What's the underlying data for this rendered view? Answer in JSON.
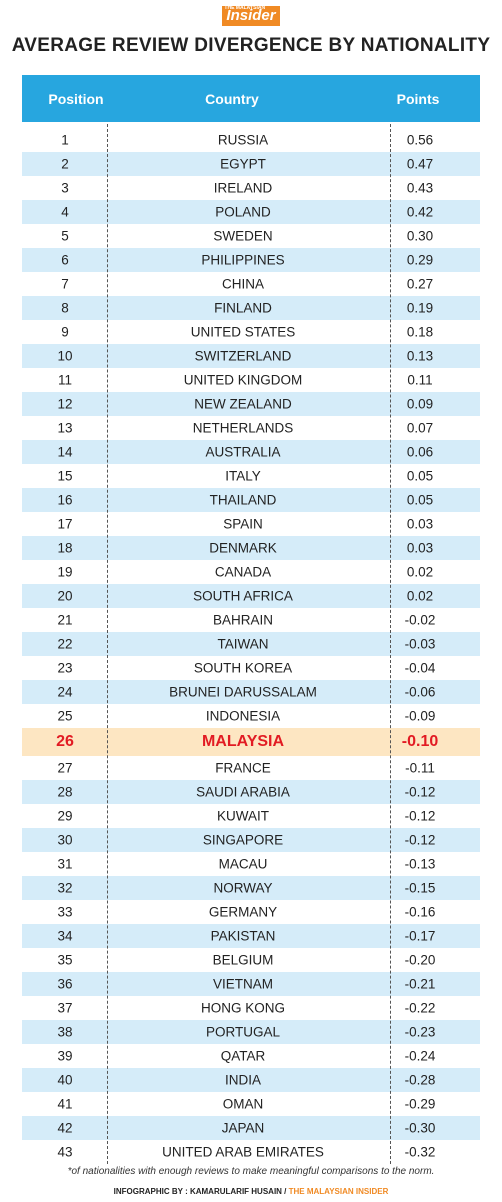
{
  "header": {
    "logo_small": "THE MALAYSIAN",
    "logo": "Insider",
    "title": "AVERAGE REVIEW DIVERGENCE BY NATIONALITY"
  },
  "table": {
    "columns": [
      "Position",
      "Country",
      "Points"
    ],
    "rows": [
      {
        "position": "1",
        "country": "RUSSIA",
        "points": "0.56"
      },
      {
        "position": "2",
        "country": "EGYPT",
        "points": "0.47"
      },
      {
        "position": "3",
        "country": "IRELAND",
        "points": "0.43"
      },
      {
        "position": "4",
        "country": "POLAND",
        "points": "0.42"
      },
      {
        "position": "5",
        "country": "SWEDEN",
        "points": "0.30"
      },
      {
        "position": "6",
        "country": "PHILIPPINES",
        "points": "0.29"
      },
      {
        "position": "7",
        "country": "CHINA",
        "points": "0.27"
      },
      {
        "position": "8",
        "country": "FINLAND",
        "points": "0.19"
      },
      {
        "position": "9",
        "country": "UNITED STATES",
        "points": "0.18"
      },
      {
        "position": "10",
        "country": "SWITZERLAND",
        "points": "0.13"
      },
      {
        "position": "11",
        "country": "UNITED KINGDOM",
        "points": "0.11"
      },
      {
        "position": "12",
        "country": "NEW ZEALAND",
        "points": "0.09"
      },
      {
        "position": "13",
        "country": "NETHERLANDS",
        "points": "0.07"
      },
      {
        "position": "14",
        "country": "AUSTRALIA",
        "points": "0.06"
      },
      {
        "position": "15",
        "country": "ITALY",
        "points": "0.05"
      },
      {
        "position": "16",
        "country": "THAILAND",
        "points": "0.05"
      },
      {
        "position": "17",
        "country": "SPAIN",
        "points": "0.03"
      },
      {
        "position": "18",
        "country": "DENMARK",
        "points": "0.03"
      },
      {
        "position": "19",
        "country": "CANADA",
        "points": "0.02"
      },
      {
        "position": "20",
        "country": "SOUTH AFRICA",
        "points": "0.02"
      },
      {
        "position": "21",
        "country": "BAHRAIN",
        "points": "-0.02"
      },
      {
        "position": "22",
        "country": "TAIWAN",
        "points": "-0.03"
      },
      {
        "position": "23",
        "country": "SOUTH KOREA",
        "points": "-0.04"
      },
      {
        "position": "24",
        "country": "BRUNEI DARUSSALAM",
        "points": "-0.06"
      },
      {
        "position": "25",
        "country": "INDONESIA",
        "points": "-0.09"
      },
      {
        "position": "26",
        "country": "MALAYSIA",
        "points": "-0.10",
        "highlight": true
      },
      {
        "position": "27",
        "country": "FRANCE",
        "points": "-0.11"
      },
      {
        "position": "28",
        "country": "SAUDI ARABIA",
        "points": "-0.12"
      },
      {
        "position": "29",
        "country": "KUWAIT",
        "points": "-0.12"
      },
      {
        "position": "30",
        "country": "SINGAPORE",
        "points": "-0.12"
      },
      {
        "position": "31",
        "country": "MACAU",
        "points": "-0.13"
      },
      {
        "position": "32",
        "country": "NORWAY",
        "points": "-0.15"
      },
      {
        "position": "33",
        "country": "GERMANY",
        "points": "-0.16"
      },
      {
        "position": "34",
        "country": "PAKISTAN",
        "points": "-0.17"
      },
      {
        "position": "35",
        "country": "BELGIUM",
        "points": "-0.20"
      },
      {
        "position": "36",
        "country": "VIETNAM",
        "points": "-0.21"
      },
      {
        "position": "37",
        "country": "HONG KONG",
        "points": "-0.22"
      },
      {
        "position": "38",
        "country": "PORTUGAL",
        "points": "-0.23"
      },
      {
        "position": "39",
        "country": "QATAR",
        "points": "-0.24"
      },
      {
        "position": "40",
        "country": "INDIA",
        "points": "-0.28"
      },
      {
        "position": "41",
        "country": "OMAN",
        "points": "-0.29"
      },
      {
        "position": "42",
        "country": "JAPAN",
        "points": "-0.30"
      },
      {
        "position": "43",
        "country": "UNITED ARAB EMIRATES",
        "points": "-0.32"
      }
    ]
  },
  "footer": {
    "note": "*of nationalities with enough reviews to make meaningful comparisons to the norm.",
    "credit": "INFOGRAPHIC BY : KAMARULARIF HUSAIN / ",
    "source": "THE MALAYSIAN INSIDER"
  }
}
